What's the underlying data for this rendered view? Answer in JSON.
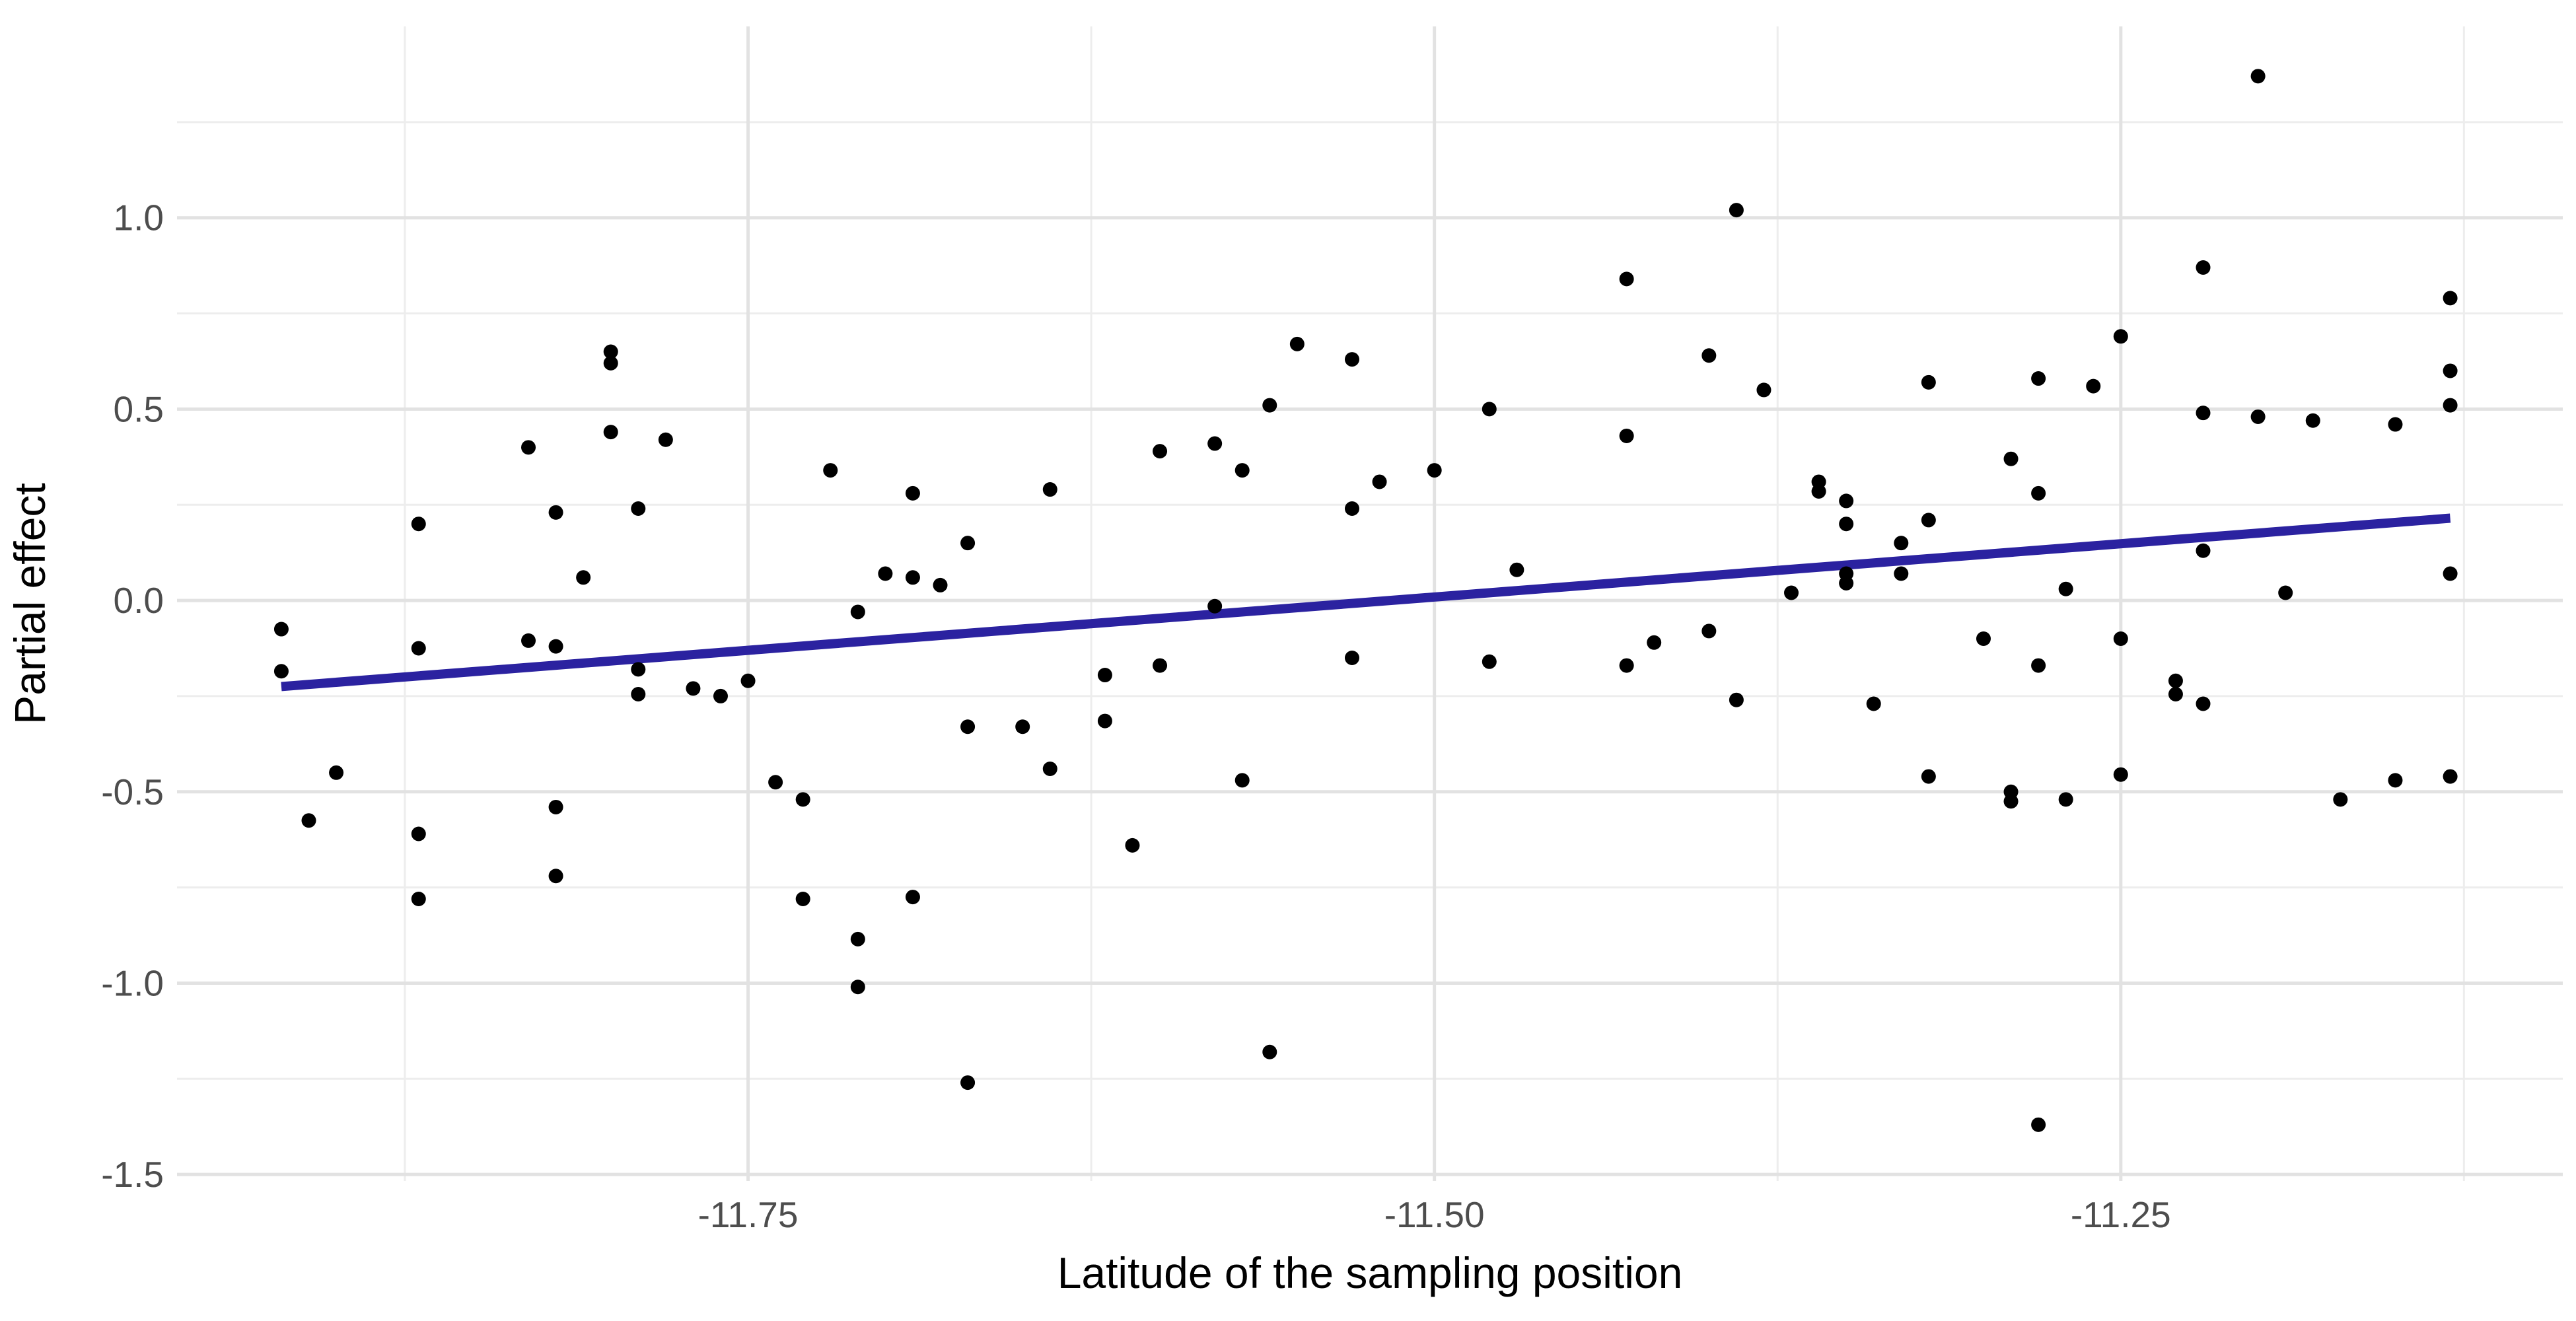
{
  "chart_data": {
    "type": "scatter",
    "title": "",
    "xlabel": "Latitude of the sampling position",
    "ylabel": "Partial effect",
    "xlim": [
      -11.958,
      -11.089
    ],
    "ylim": [
      -1.517,
      1.5
    ],
    "x_major_ticks": [
      -11.75,
      -11.5,
      -11.25
    ],
    "x_tick_labels": [
      "-11.75",
      "-11.50",
      "-11.25"
    ],
    "x_minor_ticks": [
      -11.875,
      -11.625,
      -11.375,
      -11.125
    ],
    "y_major_ticks": [
      1.0,
      0.5,
      0.0,
      -0.5,
      -1.0,
      -1.5
    ],
    "y_tick_labels": [
      "1.0",
      "0.5",
      "0.0",
      "-0.5",
      "-1.0",
      "-1.5"
    ],
    "y_minor_ticks": [
      1.25,
      0.75,
      0.25,
      -0.25,
      -0.75,
      -1.25
    ],
    "grid": "major+minor",
    "legend": "none",
    "background_color": "#ffffff",
    "major_grid_color": "#e2e2e2",
    "minor_grid_color": "#ededed",
    "point_color": "#000000",
    "trend_line_color": "#2b22a0",
    "trend_line": {
      "x1": -11.92,
      "y1": -0.225,
      "x2": -11.13,
      "y2": 0.215
    },
    "points": [
      [
        -11.8,
        0.65
      ],
      [
        -11.8,
        0.62
      ],
      [
        -11.8,
        0.44
      ],
      [
        -11.78,
        0.42
      ],
      [
        -11.83,
        0.4
      ],
      [
        -11.82,
        0.23
      ],
      [
        -11.79,
        0.24
      ],
      [
        -11.87,
        0.2
      ],
      [
        -11.81,
        0.06
      ],
      [
        -11.72,
        0.34
      ],
      [
        -11.69,
        0.28
      ],
      [
        -11.64,
        0.29
      ],
      [
        -11.67,
        0.15
      ],
      [
        -11.7,
        0.07
      ],
      [
        -11.69,
        0.06
      ],
      [
        -11.68,
        0.04
      ],
      [
        -11.6,
        0.39
      ],
      [
        -11.58,
        0.41
      ],
      [
        -11.55,
        0.67
      ],
      [
        -11.53,
        0.63
      ],
      [
        -11.56,
        0.51
      ],
      [
        -11.57,
        0.34
      ],
      [
        -11.52,
        0.31
      ],
      [
        -11.53,
        0.24
      ],
      [
        -11.39,
        1.02
      ],
      [
        -11.43,
        0.84
      ],
      [
        -11.4,
        0.64
      ],
      [
        -11.38,
        0.55
      ],
      [
        -11.48,
        0.5
      ],
      [
        -11.32,
        0.57
      ],
      [
        -11.43,
        0.43
      ],
      [
        -11.5,
        0.34
      ],
      [
        -11.47,
        0.08
      ],
      [
        -11.36,
        0.31
      ],
      [
        -11.36,
        0.285
      ],
      [
        -11.35,
        0.26
      ],
      [
        -11.35,
        0.2
      ],
      [
        -11.33,
        0.15
      ],
      [
        -11.32,
        0.21
      ],
      [
        -11.33,
        0.07
      ],
      [
        -11.35,
        0.07
      ],
      [
        -11.35,
        0.045
      ],
      [
        -11.37,
        0.02
      ],
      [
        -11.2,
        1.37
      ],
      [
        -11.22,
        0.87
      ],
      [
        -11.13,
        0.79
      ],
      [
        -11.25,
        0.69
      ],
      [
        -11.28,
        0.58
      ],
      [
        -11.26,
        0.56
      ],
      [
        -11.13,
        0.6
      ],
      [
        -11.13,
        0.51
      ],
      [
        -11.22,
        0.49
      ],
      [
        -11.2,
        0.48
      ],
      [
        -11.18,
        0.47
      ],
      [
        -11.15,
        0.46
      ],
      [
        -11.29,
        0.37
      ],
      [
        -11.28,
        0.28
      ],
      [
        -11.22,
        0.13
      ],
      [
        -11.13,
        0.07
      ],
      [
        -11.27,
        0.03
      ],
      [
        -11.19,
        0.02
      ],
      [
        -11.92,
        -0.075
      ],
      [
        -11.92,
        -0.185
      ],
      [
        -11.87,
        -0.125
      ],
      [
        -11.83,
        -0.105
      ],
      [
        -11.82,
        -0.12
      ],
      [
        -11.79,
        -0.18
      ],
      [
        -11.79,
        -0.245
      ],
      [
        -11.77,
        -0.23
      ],
      [
        -11.76,
        -0.25
      ],
      [
        -11.75,
        -0.21
      ],
      [
        -11.74,
        -0.475
      ],
      [
        -11.9,
        -0.45
      ],
      [
        -11.91,
        -0.575
      ],
      [
        -11.87,
        -0.61
      ],
      [
        -11.82,
        -0.54
      ],
      [
        -11.82,
        -0.72
      ],
      [
        -11.87,
        -0.78
      ],
      [
        -11.71,
        -0.03
      ],
      [
        -11.58,
        -0.015
      ],
      [
        -11.62,
        -0.195
      ],
      [
        -11.6,
        -0.17
      ],
      [
        -11.53,
        -0.15
      ],
      [
        -11.62,
        -0.315
      ],
      [
        -11.67,
        -0.33
      ],
      [
        -11.65,
        -0.33
      ],
      [
        -11.64,
        -0.44
      ],
      [
        -11.57,
        -0.47
      ],
      [
        -11.61,
        -0.64
      ],
      [
        -11.73,
        -0.52
      ],
      [
        -11.73,
        -0.78
      ],
      [
        -11.69,
        -0.775
      ],
      [
        -11.71,
        -0.885
      ],
      [
        -11.71,
        -1.01
      ],
      [
        -11.56,
        -1.18
      ],
      [
        -11.67,
        -1.26
      ],
      [
        -11.48,
        -0.16
      ],
      [
        -11.43,
        -0.17
      ],
      [
        -11.42,
        -0.11
      ],
      [
        -11.4,
        -0.08
      ],
      [
        -11.39,
        -0.26
      ],
      [
        -11.34,
        -0.27
      ],
      [
        -11.32,
        -0.46
      ],
      [
        -11.3,
        -0.1
      ],
      [
        -11.29,
        -0.5
      ],
      [
        -11.29,
        -0.525
      ],
      [
        -11.28,
        -0.17
      ],
      [
        -11.25,
        -0.1
      ],
      [
        -11.23,
        -0.21
      ],
      [
        -11.23,
        -0.245
      ],
      [
        -11.22,
        -0.27
      ],
      [
        -11.25,
        -0.455
      ],
      [
        -11.27,
        -0.52
      ],
      [
        -11.17,
        -0.52
      ],
      [
        -11.15,
        -0.47
      ],
      [
        -11.13,
        -0.46
      ],
      [
        -11.28,
        -1.37
      ]
    ]
  }
}
